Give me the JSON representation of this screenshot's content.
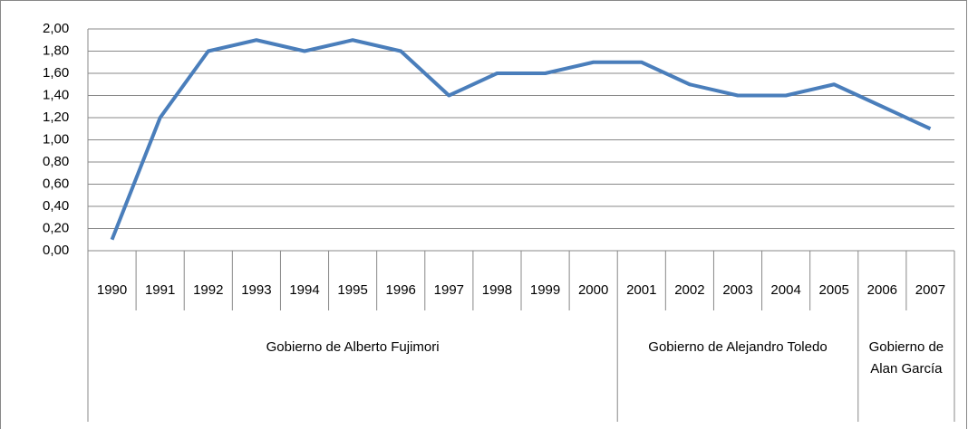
{
  "chart_data": {
    "type": "line",
    "categories": [
      "1990",
      "1991",
      "1992",
      "1993",
      "1994",
      "1995",
      "1996",
      "1997",
      "1998",
      "1999",
      "2000",
      "2001",
      "2002",
      "2003",
      "2004",
      "2005",
      "2006",
      "2007"
    ],
    "groups": [
      "Gobierno de Alberto Fujimori",
      null,
      null,
      null,
      null,
      null,
      null,
      null,
      null,
      null,
      null,
      "Gobierno de Alejandro Toledo",
      null,
      null,
      null,
      null,
      "Gobierno de Alan García",
      null
    ],
    "series": [
      {
        "color": "#4a7ebb",
        "values": [
          0.1,
          1.2,
          1.8,
          1.9,
          1.8,
          1.9,
          1.8,
          1.4,
          1.6,
          1.6,
          1.7,
          1.7,
          1.5,
          1.4,
          1.4,
          1.5,
          1.3,
          1.1
        ]
      }
    ],
    "ylim": [
      0,
      2
    ],
    "yticks": [
      {
        "value": 0,
        "label": "0,00"
      },
      {
        "value": 0.2,
        "label": "0,20"
      },
      {
        "value": 0.4,
        "label": "0,40"
      },
      {
        "value": 0.6,
        "label": "0,60"
      },
      {
        "value": 0.8,
        "label": "0,80"
      },
      {
        "value": 1,
        "label": "1,00"
      },
      {
        "value": 1.2,
        "label": "1,20"
      },
      {
        "value": 1.4,
        "label": "1,40"
      },
      {
        "value": 1.6,
        "label": "1,60"
      },
      {
        "value": 1.8,
        "label": "1,80"
      },
      {
        "value": 2,
        "label": "2,00"
      }
    ],
    "grid": true
  }
}
